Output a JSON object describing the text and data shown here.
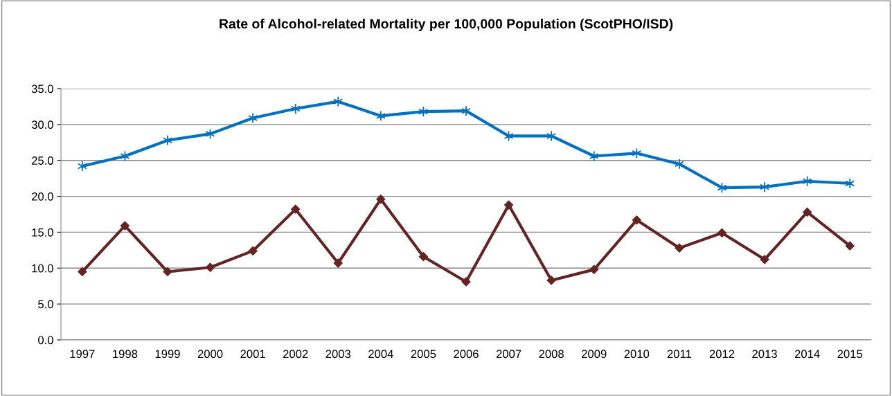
{
  "chart_data": {
    "type": "line",
    "title": "Rate of Alcohol-related Mortality per 100,000 Population (ScotPHO/ISD)",
    "categories": [
      "1997",
      "1998",
      "1999",
      "2000",
      "2001",
      "2002",
      "2003",
      "2004",
      "2005",
      "2006",
      "2007",
      "2008",
      "2009",
      "2010",
      "2011",
      "2012",
      "2013",
      "2014",
      "2015"
    ],
    "series": [
      {
        "color": "#0070c0",
        "marker": "cross",
        "values": [
          24.2,
          25.6,
          27.8,
          28.7,
          30.9,
          32.2,
          33.2,
          31.2,
          31.8,
          31.9,
          28.4,
          28.4,
          25.6,
          26.0,
          24.5,
          21.2,
          21.3,
          22.1,
          21.8
        ]
      },
      {
        "color": "#632523",
        "marker": "diamond",
        "values": [
          9.5,
          15.9,
          9.5,
          10.1,
          12.4,
          18.2,
          10.7,
          19.6,
          11.6,
          8.1,
          18.8,
          8.3,
          9.8,
          16.7,
          12.8,
          14.9,
          11.2,
          17.8,
          13.1
        ]
      }
    ],
    "ylim": [
      0,
      35
    ],
    "yticks": [
      {
        "value": 0,
        "label": "0.0"
      },
      {
        "value": 5,
        "label": "5.0"
      },
      {
        "value": 10,
        "label": "10.0"
      },
      {
        "value": 15,
        "label": "15.0"
      },
      {
        "value": 20,
        "label": "20.0"
      },
      {
        "value": 25,
        "label": "25.0"
      },
      {
        "value": 30,
        "label": "30.0"
      },
      {
        "value": 35,
        "label": "35.0"
      }
    ],
    "grid": "y",
    "line_style": "solid"
  }
}
